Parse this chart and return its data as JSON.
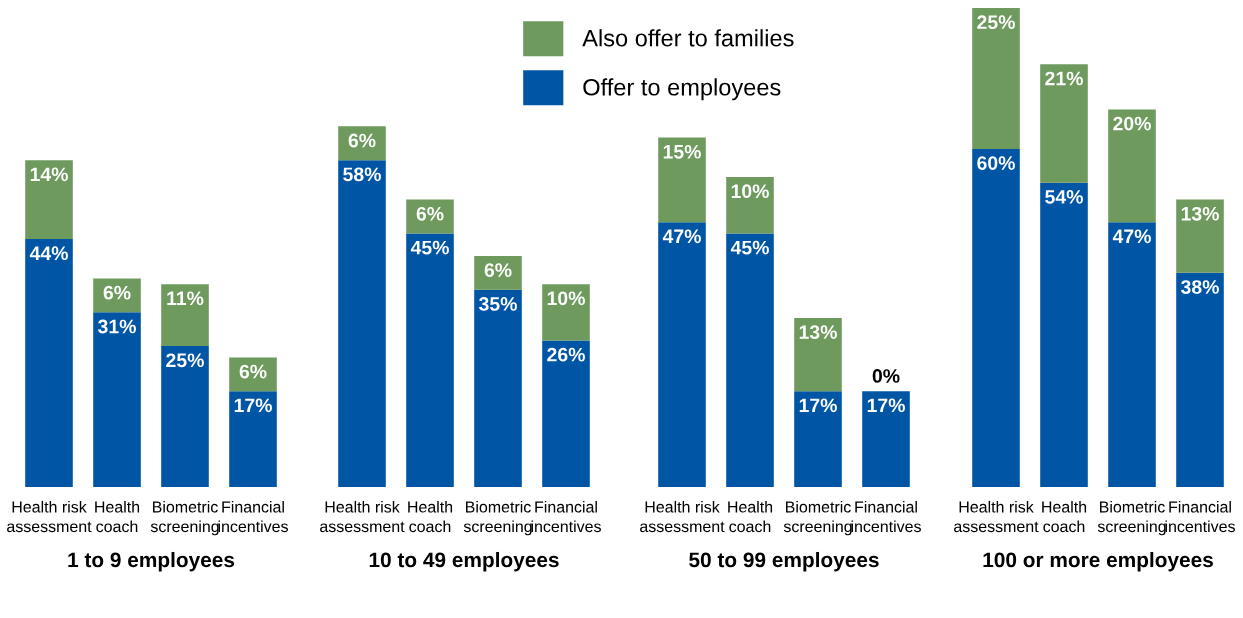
{
  "chart_data": [
    {
      "type": "bar",
      "stacked": true,
      "xlabel": "1 to 9 employees",
      "categories": [
        "Health risk\nassessment",
        "Health\ncoach",
        "Biometric\nscreening",
        "Financial\nincentives"
      ],
      "series": [
        {
          "color": "#0055a4",
          "values": [
            44,
            31,
            25,
            17
          ],
          "value_labels": [
            "44%",
            "31%",
            "25%",
            "17%"
          ]
        },
        {
          "color": "#6e9a5e",
          "values": [
            14,
            6,
            11,
            6
          ],
          "value_labels": [
            "14%",
            "6%",
            "11%",
            "6%"
          ]
        }
      ]
    },
    {
      "type": "bar",
      "stacked": true,
      "xlabel": "10 to 49 employees",
      "categories": [
        "Health risk\nassessment",
        "Health\ncoach",
        "Biometric\nscreening",
        "Financial\nincentives"
      ],
      "legend": "top",
      "series": [
        {
          "name": "Offer to employees",
          "color": "#0055a4",
          "values": [
            58,
            45,
            35,
            26
          ],
          "value_labels": [
            "58%",
            "45%",
            "35%",
            "26%"
          ]
        },
        {
          "name": "Also offer to families",
          "color": "#6e9a5e",
          "values": [
            6,
            6,
            6,
            10
          ],
          "value_labels": [
            "6%",
            "6%",
            "6%",
            "10%"
          ]
        }
      ]
    },
    {
      "type": "bar",
      "stacked": true,
      "xlabel": "50 to 99 employees",
      "categories": [
        "Health risk\nassessment",
        "Health\ncoach",
        "Biometric\nscreening",
        "Financial\nincentives"
      ],
      "series": [
        {
          "color": "#0055a4",
          "values": [
            47,
            45,
            17,
            17
          ],
          "value_labels": [
            "47%",
            "45%",
            "17%",
            "17%"
          ]
        },
        {
          "color": "#6e9a5e",
          "values": [
            15,
            10,
            13,
            0
          ],
          "value_labels": [
            "15%",
            "10%",
            "13%",
            "0%"
          ]
        }
      ]
    },
    {
      "type": "bar",
      "stacked": true,
      "xlabel": "100 or more employees",
      "categories": [
        "Health risk\nassessment",
        "Health\ncoach",
        "Biometric\nscreening",
        "Financial\nincentives"
      ],
      "series": [
        {
          "color": "#0055a4",
          "values": [
            60,
            54,
            47,
            38
          ],
          "value_labels": [
            "60%",
            "54%",
            "47%",
            "38%"
          ]
        },
        {
          "color": "#6e9a5e",
          "values": [
            25,
            21,
            20,
            13
          ],
          "value_labels": [
            "25%",
            "21%",
            "20%",
            "13%"
          ]
        }
      ]
    }
  ]
}
